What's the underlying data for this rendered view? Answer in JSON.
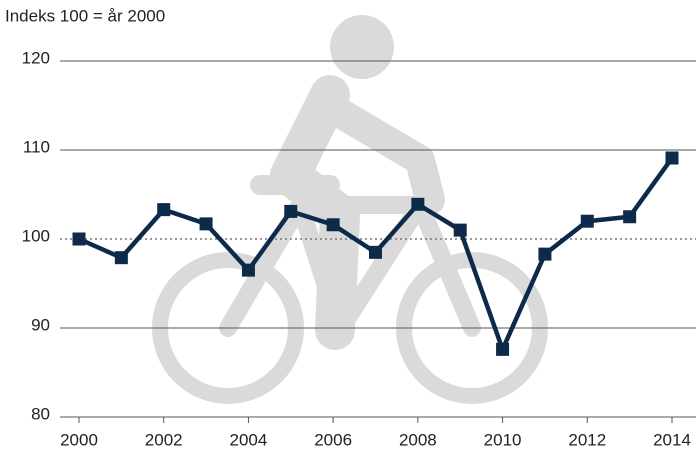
{
  "chart_data": {
    "type": "line",
    "title": "Indeks 100 = år 2000",
    "x": [
      2000,
      2001,
      2002,
      2003,
      2004,
      2005,
      2006,
      2007,
      2008,
      2009,
      2010,
      2011,
      2012,
      2013,
      2014
    ],
    "series": [
      {
        "color": "#0d2a4a",
        "values": [
          100,
          97.9,
          103.3,
          101.7,
          96.5,
          103.1,
          101.6,
          98.5,
          103.9,
          101.0,
          87.6,
          98.3,
          102.0,
          102.5,
          109.1
        ]
      }
    ],
    "xlim": [
      2000,
      2014
    ],
    "xticks": [
      2000,
      2002,
      2004,
      2006,
      2008,
      2010,
      2012,
      2014
    ],
    "ylim": [
      80,
      120
    ],
    "yticks": [
      80,
      90,
      100,
      110,
      120
    ],
    "grid": true,
    "grid_dash": [
      false,
      false,
      true,
      false,
      false
    ]
  }
}
